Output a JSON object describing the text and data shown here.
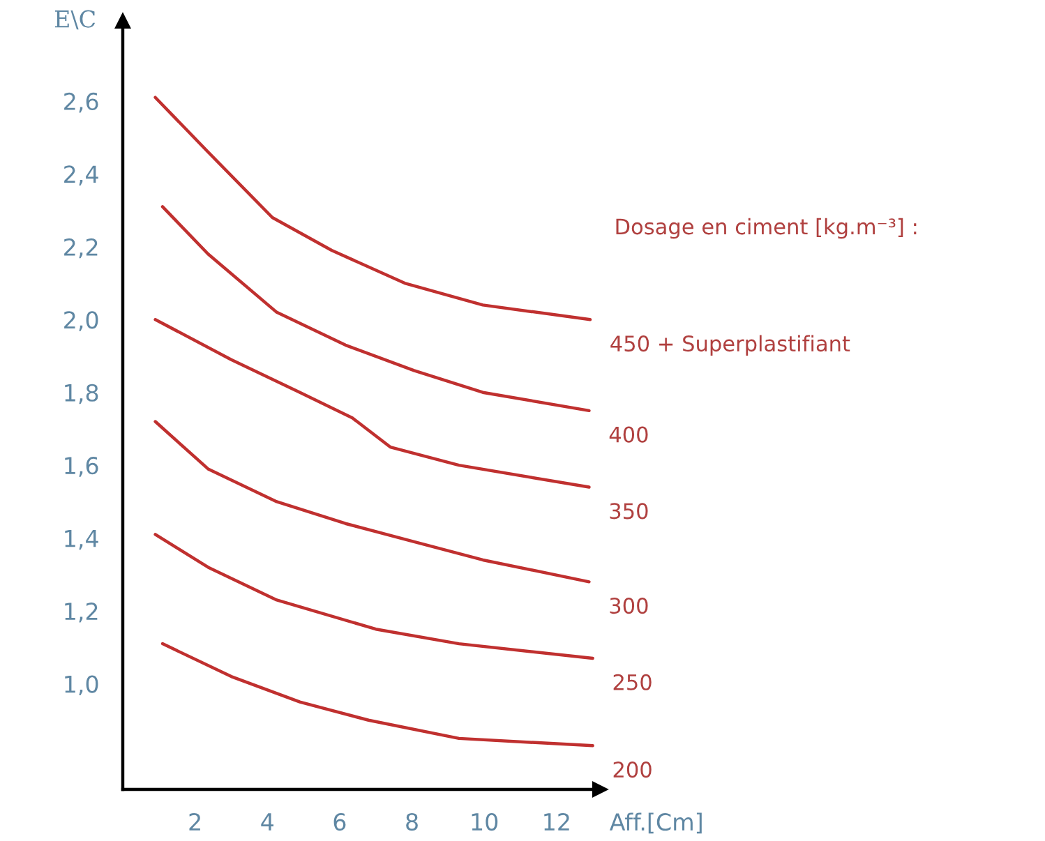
{
  "chart_data": {
    "type": "line",
    "xlabel": "Aff.[Cm]",
    "ylabel": "E\\C",
    "legend_title": "Dosage en ciment [kg.m⁻³] :",
    "xlim": [
      0,
      13.2
    ],
    "ylim": [
      0.71,
      2.82
    ],
    "xticks": [
      2,
      4,
      6,
      8,
      10,
      12
    ],
    "yticks": [
      {
        "value": 1.0,
        "label": "1,0"
      },
      {
        "value": 1.2,
        "label": "1,2"
      },
      {
        "value": 1.4,
        "label": "1,4"
      },
      {
        "value": 1.6,
        "label": "1,6"
      },
      {
        "value": 1.8,
        "label": "1,8"
      },
      {
        "value": 2.0,
        "label": "2,0"
      },
      {
        "value": 2.2,
        "label": "2,2"
      },
      {
        "value": 2.4,
        "label": "2,4"
      },
      {
        "value": 2.6,
        "label": "2,6"
      }
    ],
    "grid": false,
    "legend": false,
    "marker": "none",
    "line_style": "solid",
    "series": [
      {
        "name": "450 + Superplastifiant",
        "color": "#c0302f",
        "x": [
          0.9,
          2.36,
          4.14,
          5.78,
          7.8,
          9.96,
          12.93
        ],
        "values": [
          2.61,
          2.46,
          2.28,
          2.19,
          2.1,
          2.04,
          2.0
        ]
      },
      {
        "name": "400",
        "color": "#c0302f",
        "x": [
          1.1,
          2.36,
          4.26,
          6.16,
          8.06,
          9.96,
          12.9
        ],
        "values": [
          2.31,
          2.18,
          2.02,
          1.93,
          1.86,
          1.8,
          1.75
        ]
      },
      {
        "name": "350",
        "color": "#c0302f",
        "x": [
          0.9,
          3.0,
          4.9,
          6.35,
          7.4,
          9.3,
          12.9
        ],
        "values": [
          2.0,
          1.89,
          1.8,
          1.73,
          1.65,
          1.6,
          1.54
        ]
      },
      {
        "name": "300",
        "color": "#c0302f",
        "x": [
          0.9,
          2.36,
          4.26,
          6.16,
          8.06,
          9.96,
          12.9
        ],
        "values": [
          1.72,
          1.59,
          1.5,
          1.44,
          1.39,
          1.34,
          1.28
        ]
      },
      {
        "name": "250",
        "color": "#c0302f",
        "x": [
          0.9,
          2.36,
          4.26,
          7.0,
          9.3,
          13.0
        ],
        "values": [
          1.41,
          1.32,
          1.23,
          1.15,
          1.11,
          1.07
        ]
      },
      {
        "name": "200",
        "color": "#c0302f",
        "x": [
          1.1,
          3.0,
          4.9,
          6.8,
          9.3,
          13.0
        ],
        "values": [
          1.11,
          1.02,
          0.95,
          0.9,
          0.85,
          0.83
        ]
      }
    ]
  }
}
